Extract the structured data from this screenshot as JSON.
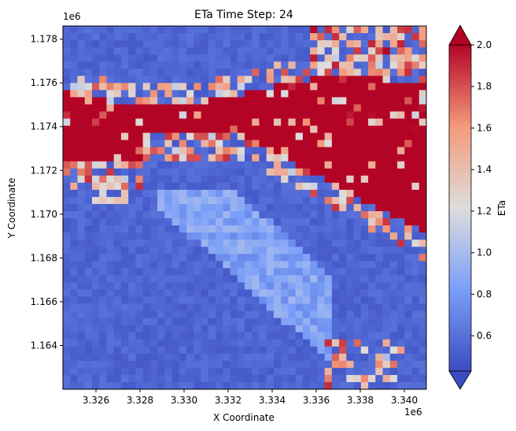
{
  "chart_data": {
    "type": "heatmap",
    "title": "ETa Time Step: 24",
    "xlabel": "X Coordinate",
    "ylabel": "Y Coordinate",
    "x_offset_label": "1e6",
    "y_offset_label": "1e6",
    "xlim": [
      3.3245,
      3.341
    ],
    "ylim": [
      1.162,
      1.1786
    ],
    "xticks": [
      "3.326",
      "3.328",
      "3.330",
      "3.332",
      "3.334",
      "3.336",
      "3.338",
      "3.340"
    ],
    "xtick_values": [
      3.326,
      3.328,
      3.33,
      3.332,
      3.334,
      3.336,
      3.338,
      3.34
    ],
    "yticks": [
      "1.164",
      "1.166",
      "1.168",
      "1.170",
      "1.172",
      "1.174",
      "1.176",
      "1.178"
    ],
    "ytick_values": [
      1.164,
      1.166,
      1.168,
      1.17,
      1.172,
      1.174,
      1.176,
      1.178
    ],
    "grid": false,
    "grid_cols": 50,
    "grid_rows": 51,
    "colormap": "coolwarm",
    "colorbar": {
      "label": "ETa",
      "vmin": 0.43,
      "vmax": 2.0,
      "extend": "both",
      "ticks": [
        "0.6",
        "0.8",
        "1.0",
        "1.2",
        "1.4",
        "1.6",
        "1.8",
        "2.0"
      ],
      "tick_values": [
        0.6,
        0.8,
        1.0,
        1.2,
        1.4,
        1.6,
        1.8,
        2.0
      ]
    },
    "regions_description_values": {
      "background_low": 0.55,
      "high_band_value": 2.0,
      "moderate_center": 0.85
    }
  }
}
